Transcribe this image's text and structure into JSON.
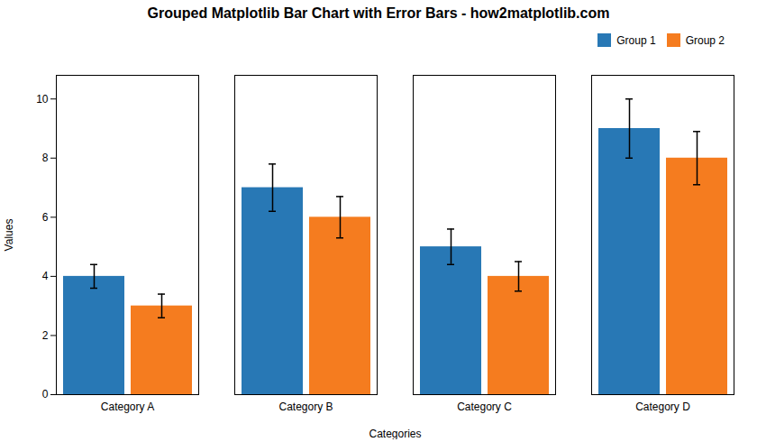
{
  "chart_data": {
    "type": "bar",
    "title": "Grouped Matplotlib Bar Chart with Error Bars - how2matplotlib.com",
    "xlabel": "Categories",
    "ylabel": "Values",
    "categories": [
      "Category A",
      "Category B",
      "Category C",
      "Category D"
    ],
    "series": [
      {
        "name": "Group 1",
        "color": "#2878b5",
        "values": [
          4,
          7,
          5,
          9
        ],
        "errors": [
          0.4,
          0.8,
          0.6,
          1.0
        ]
      },
      {
        "name": "Group 2",
        "color": "#f57c1f",
        "values": [
          3,
          6,
          4,
          8
        ],
        "errors": [
          0.4,
          0.7,
          0.5,
          0.9
        ]
      }
    ],
    "ylim": [
      0,
      10.8
    ],
    "yticks": [
      0,
      2,
      4,
      6,
      8,
      10
    ],
    "grid": false,
    "legend": "upper right"
  }
}
